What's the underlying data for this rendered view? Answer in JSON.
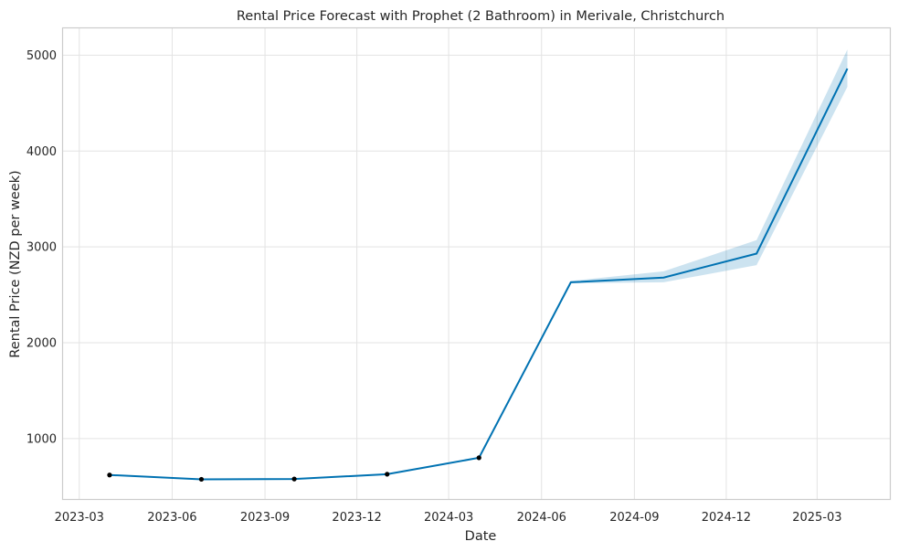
{
  "chart_data": {
    "type": "line",
    "title": "Rental Price Forecast with Prophet (2 Bathroom) in Merivale, Christchurch",
    "xlabel": "Date",
    "ylabel": "Rental Price (NZD per week)",
    "x_ticks": [
      "2023-03",
      "2023-06",
      "2023-09",
      "2023-12",
      "2024-03",
      "2024-06",
      "2024-09",
      "2024-12",
      "2025-03"
    ],
    "y_ticks": [
      1000,
      2000,
      3000,
      4000,
      5000
    ],
    "xlim": [
      "2023-02-12",
      "2025-05-13"
    ],
    "ylim": [
      360,
      5290
    ],
    "grid": true,
    "colors": {
      "forecast_line": "#0072b2",
      "uncertainty_band": "#0072b2",
      "observed_points": "#000000"
    },
    "observed": {
      "x": [
        "2023-03-31",
        "2023-06-30",
        "2023-09-30",
        "2023-12-31",
        "2024-03-31"
      ],
      "y": [
        620,
        575,
        578,
        628,
        800
      ]
    },
    "forecast": {
      "x": [
        "2023-03-31",
        "2023-06-30",
        "2023-09-30",
        "2023-12-31",
        "2024-03-31",
        "2024-06-30",
        "2024-09-30",
        "2024-12-31",
        "2025-03-31"
      ],
      "yhat": [
        620,
        575,
        578,
        628,
        800,
        2630,
        2680,
        2930,
        4860
      ],
      "yhat_lower": [
        620,
        575,
        578,
        628,
        800,
        2620,
        2630,
        2810,
        4670
      ],
      "yhat_upper": [
        620,
        575,
        578,
        628,
        800,
        2645,
        2745,
        3070,
        5060
      ]
    }
  }
}
